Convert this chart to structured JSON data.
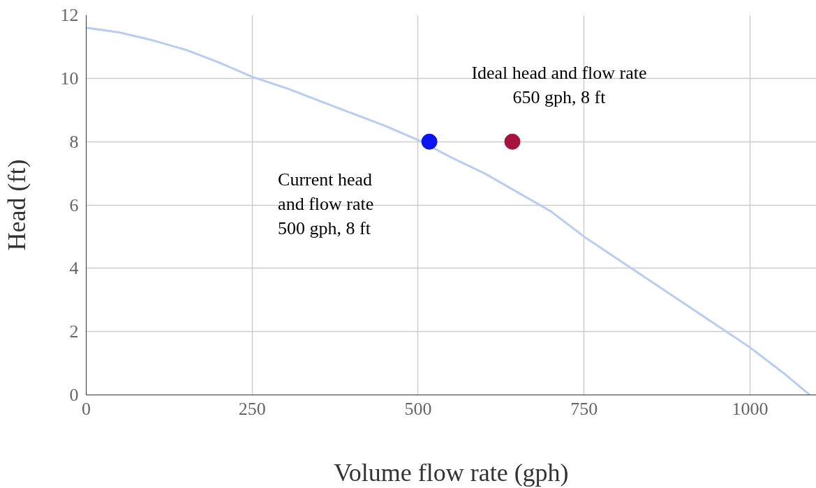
{
  "chart_data": {
    "type": "line",
    "xlabel": "Volume flow rate (gph)",
    "ylabel": "Head (ft)",
    "xlim": [
      0,
      1100
    ],
    "xticks": [
      0,
      250,
      500,
      750,
      1000
    ],
    "ylim": [
      0,
      12
    ],
    "yticks": [
      0,
      2,
      4,
      6,
      8,
      10,
      12
    ],
    "grid": true,
    "line_style": "solid",
    "series": [
      {
        "type": "line",
        "color": "#b7cdf4",
        "x": [
          0,
          50,
          100,
          150,
          200,
          250,
          300,
          350,
          400,
          450,
          500,
          550,
          600,
          650,
          700,
          750,
          800,
          850,
          900,
          950,
          1000,
          1050,
          1090
        ],
        "values": [
          11.6,
          11.45,
          11.2,
          10.9,
          10.5,
          10.05,
          9.7,
          9.3,
          8.9,
          8.5,
          8.05,
          7.5,
          7.0,
          6.4,
          5.8,
          5.0,
          4.3,
          3.6,
          2.9,
          2.2,
          1.5,
          0.7,
          0
        ]
      },
      {
        "type": "scatter",
        "marker": "circle",
        "color": "#0a14f0",
        "x": [
          517
        ],
        "values": [
          8
        ]
      },
      {
        "type": "scatter",
        "marker": "circle",
        "color": "#a8123e",
        "x": [
          642
        ],
        "values": [
          8
        ]
      }
    ],
    "annotations": [
      "Current head\nand flow rate\n500 gph, 8 ft",
      "Ideal head and flow rate\n650 gph, 8 ft"
    ]
  }
}
